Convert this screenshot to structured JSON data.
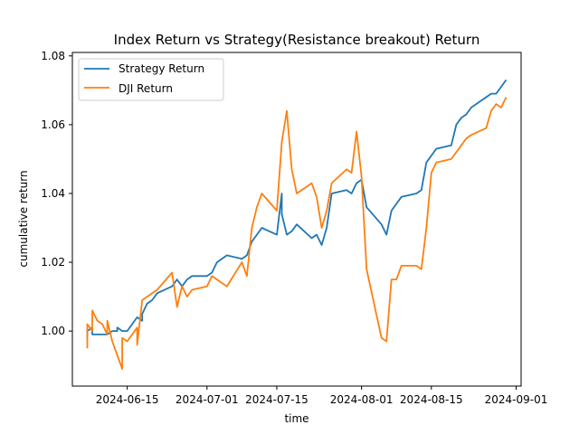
{
  "chart_data": {
    "type": "line",
    "title": "Index Return vs Strategy(Resistance breakout) Return",
    "xlabel": "time",
    "ylabel": "cumulative return",
    "xlim": [
      "2024-06-04",
      "2024-09-02"
    ],
    "ylim": [
      0.984,
      1.081
    ],
    "x_ticks": [
      "2024-06-15",
      "2024-07-01",
      "2024-07-15",
      "2024-08-01",
      "2024-08-15",
      "2024-09-01"
    ],
    "y_ticks": [
      1.0,
      1.02,
      1.04,
      1.06,
      1.08
    ],
    "y_tick_labels": [
      "1.00",
      "1.02",
      "1.04",
      "1.06",
      "1.08"
    ],
    "legend_position": "upper-left",
    "grid": false,
    "series": [
      {
        "name": "Strategy Return",
        "color": "#1f77b4",
        "x": [
          "2024-06-07",
          "2024-06-07",
          "2024-06-08",
          "2024-06-08",
          "2024-06-09",
          "2024-06-10",
          "2024-06-11",
          "2024-06-12",
          "2024-06-13",
          "2024-06-13",
          "2024-06-14",
          "2024-06-15",
          "2024-06-17",
          "2024-06-18",
          "2024-06-18",
          "2024-06-19",
          "2024-06-20",
          "2024-06-21",
          "2024-06-24",
          "2024-06-25",
          "2024-06-26",
          "2024-06-27",
          "2024-06-28",
          "2024-07-01",
          "2024-07-02",
          "2024-07-03",
          "2024-07-05",
          "2024-07-08",
          "2024-07-09",
          "2024-07-10",
          "2024-07-11",
          "2024-07-12",
          "2024-07-15",
          "2024-07-16",
          "2024-07-16",
          "2024-07-17",
          "2024-07-18",
          "2024-07-19",
          "2024-07-22",
          "2024-07-23",
          "2024-07-24",
          "2024-07-25",
          "2024-07-26",
          "2024-07-29",
          "2024-07-30",
          "2024-07-31",
          "2024-08-01",
          "2024-08-02",
          "2024-08-05",
          "2024-08-06",
          "2024-08-07",
          "2024-08-08",
          "2024-08-09",
          "2024-08-12",
          "2024-08-13",
          "2024-08-14",
          "2024-08-15",
          "2024-08-16",
          "2024-08-19",
          "2024-08-20",
          "2024-08-21",
          "2024-08-22",
          "2024-08-23",
          "2024-08-26",
          "2024-08-27",
          "2024-08-28",
          "2024-08-29",
          "2024-08-30"
        ],
        "values": [
          0.998,
          1.0,
          1.001,
          0.999,
          0.999,
          0.999,
          0.999,
          1.0,
          1.0,
          1.001,
          1.0,
          1.0,
          1.004,
          1.003,
          1.005,
          1.008,
          1.009,
          1.011,
          1.013,
          1.015,
          1.013,
          1.015,
          1.016,
          1.016,
          1.017,
          1.02,
          1.022,
          1.021,
          1.022,
          1.026,
          1.028,
          1.03,
          1.028,
          1.04,
          1.034,
          1.028,
          1.029,
          1.031,
          1.027,
          1.028,
          1.025,
          1.03,
          1.04,
          1.041,
          1.04,
          1.043,
          1.044,
          1.036,
          1.031,
          1.028,
          1.035,
          1.037,
          1.039,
          1.04,
          1.041,
          1.049,
          1.051,
          1.053,
          1.054,
          1.06,
          1.062,
          1.063,
          1.065,
          1.068,
          1.069,
          1.069,
          1.071,
          1.073
        ]
      },
      {
        "name": "DJI Return",
        "color": "#ff7f0e",
        "x": [
          "2024-06-07",
          "2024-06-07",
          "2024-06-08",
          "2024-06-08",
          "2024-06-09",
          "2024-06-10",
          "2024-06-11",
          "2024-06-11",
          "2024-06-12",
          "2024-06-13",
          "2024-06-14",
          "2024-06-14",
          "2024-06-15",
          "2024-06-17",
          "2024-06-17",
          "2024-06-18",
          "2024-06-19",
          "2024-06-20",
          "2024-06-21",
          "2024-06-24",
          "2024-06-25",
          "2024-06-26",
          "2024-06-27",
          "2024-06-28",
          "2024-07-01",
          "2024-07-02",
          "2024-07-03",
          "2024-07-05",
          "2024-07-08",
          "2024-07-09",
          "2024-07-10",
          "2024-07-11",
          "2024-07-12",
          "2024-07-15",
          "2024-07-16",
          "2024-07-17",
          "2024-07-18",
          "2024-07-19",
          "2024-07-22",
          "2024-07-23",
          "2024-07-24",
          "2024-07-25",
          "2024-07-26",
          "2024-07-29",
          "2024-07-30",
          "2024-07-31",
          "2024-08-01",
          "2024-08-02",
          "2024-08-05",
          "2024-08-06",
          "2024-08-07",
          "2024-08-08",
          "2024-08-09",
          "2024-08-12",
          "2024-08-13",
          "2024-08-14",
          "2024-08-15",
          "2024-08-16",
          "2024-08-19",
          "2024-08-20",
          "2024-08-21",
          "2024-08-22",
          "2024-08-23",
          "2024-08-26",
          "2024-08-27",
          "2024-08-28",
          "2024-08-29",
          "2024-08-30"
        ],
        "values": [
          0.995,
          1.002,
          1.0,
          1.006,
          1.003,
          1.002,
          0.999,
          1.003,
          0.997,
          0.993,
          0.989,
          0.998,
          0.997,
          1.001,
          0.996,
          1.009,
          1.01,
          1.011,
          1.012,
          1.017,
          1.007,
          1.013,
          1.01,
          1.012,
          1.013,
          1.016,
          1.015,
          1.013,
          1.02,
          1.016,
          1.03,
          1.036,
          1.04,
          1.035,
          1.055,
          1.064,
          1.047,
          1.04,
          1.043,
          1.039,
          1.03,
          1.035,
          1.043,
          1.047,
          1.046,
          1.058,
          1.045,
          1.018,
          0.998,
          0.997,
          1.015,
          1.015,
          1.019,
          1.019,
          1.018,
          1.03,
          1.046,
          1.049,
          1.05,
          1.052,
          1.054,
          1.056,
          1.057,
          1.059,
          1.064,
          1.066,
          1.065,
          1.068
        ]
      }
    ]
  }
}
